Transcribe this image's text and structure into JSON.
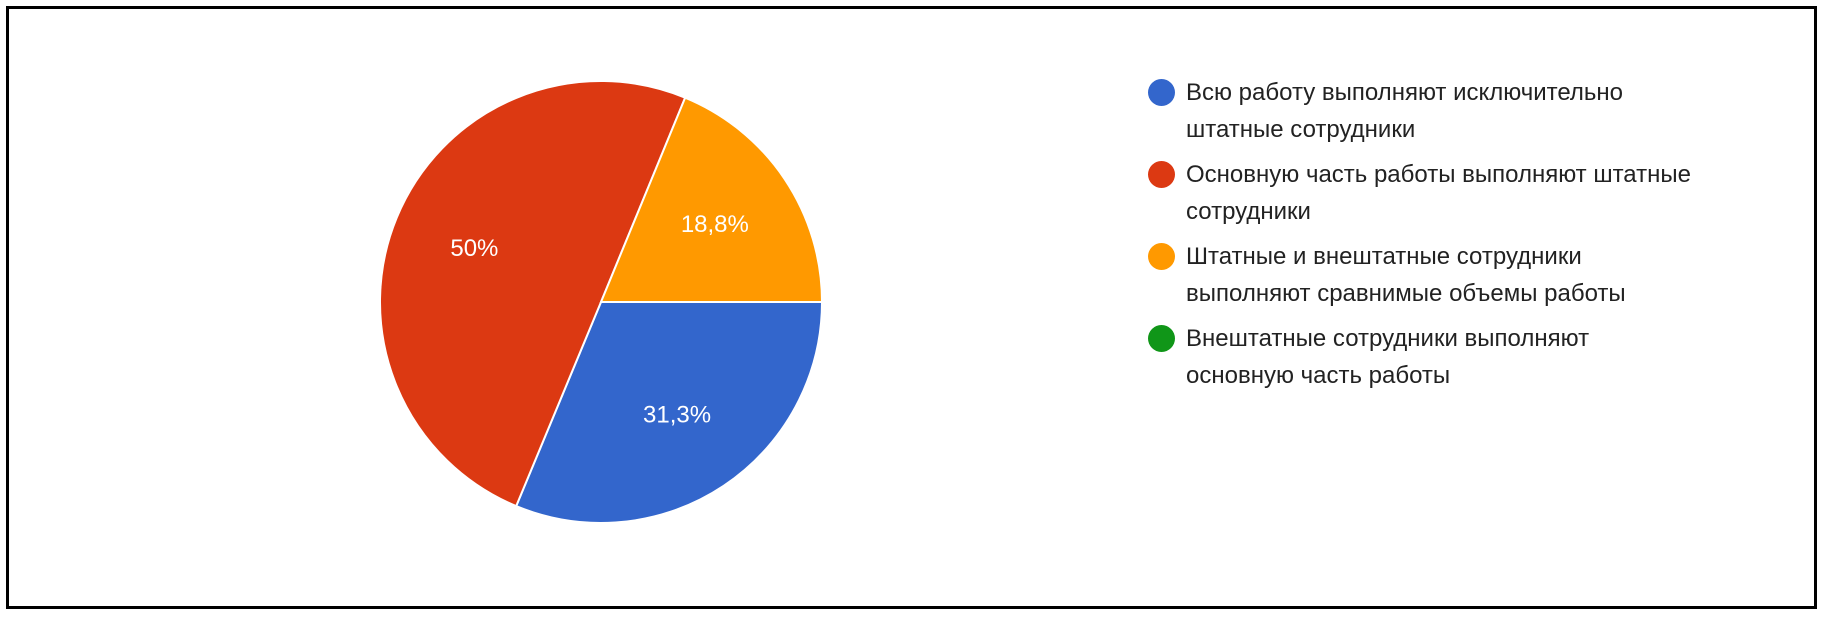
{
  "chart_data": {
    "type": "pie",
    "categories": [
      "Всю работу выполняют исключительно штатные сотрудники",
      "Основную часть работы выполняют штатные сотрудники",
      "Штатные и внештатные сотрудники выполняют сравнимые объемы работы",
      "Внештатные сотрудники выполняют основную часть работы"
    ],
    "values": [
      31.3,
      50,
      18.8,
      0
    ],
    "value_labels": [
      "31,3%",
      "50%",
      "18,8%",
      null
    ],
    "colors": [
      "#3366cc",
      "#dc3912",
      "#ff9900",
      "#109618"
    ],
    "legend": "right"
  }
}
